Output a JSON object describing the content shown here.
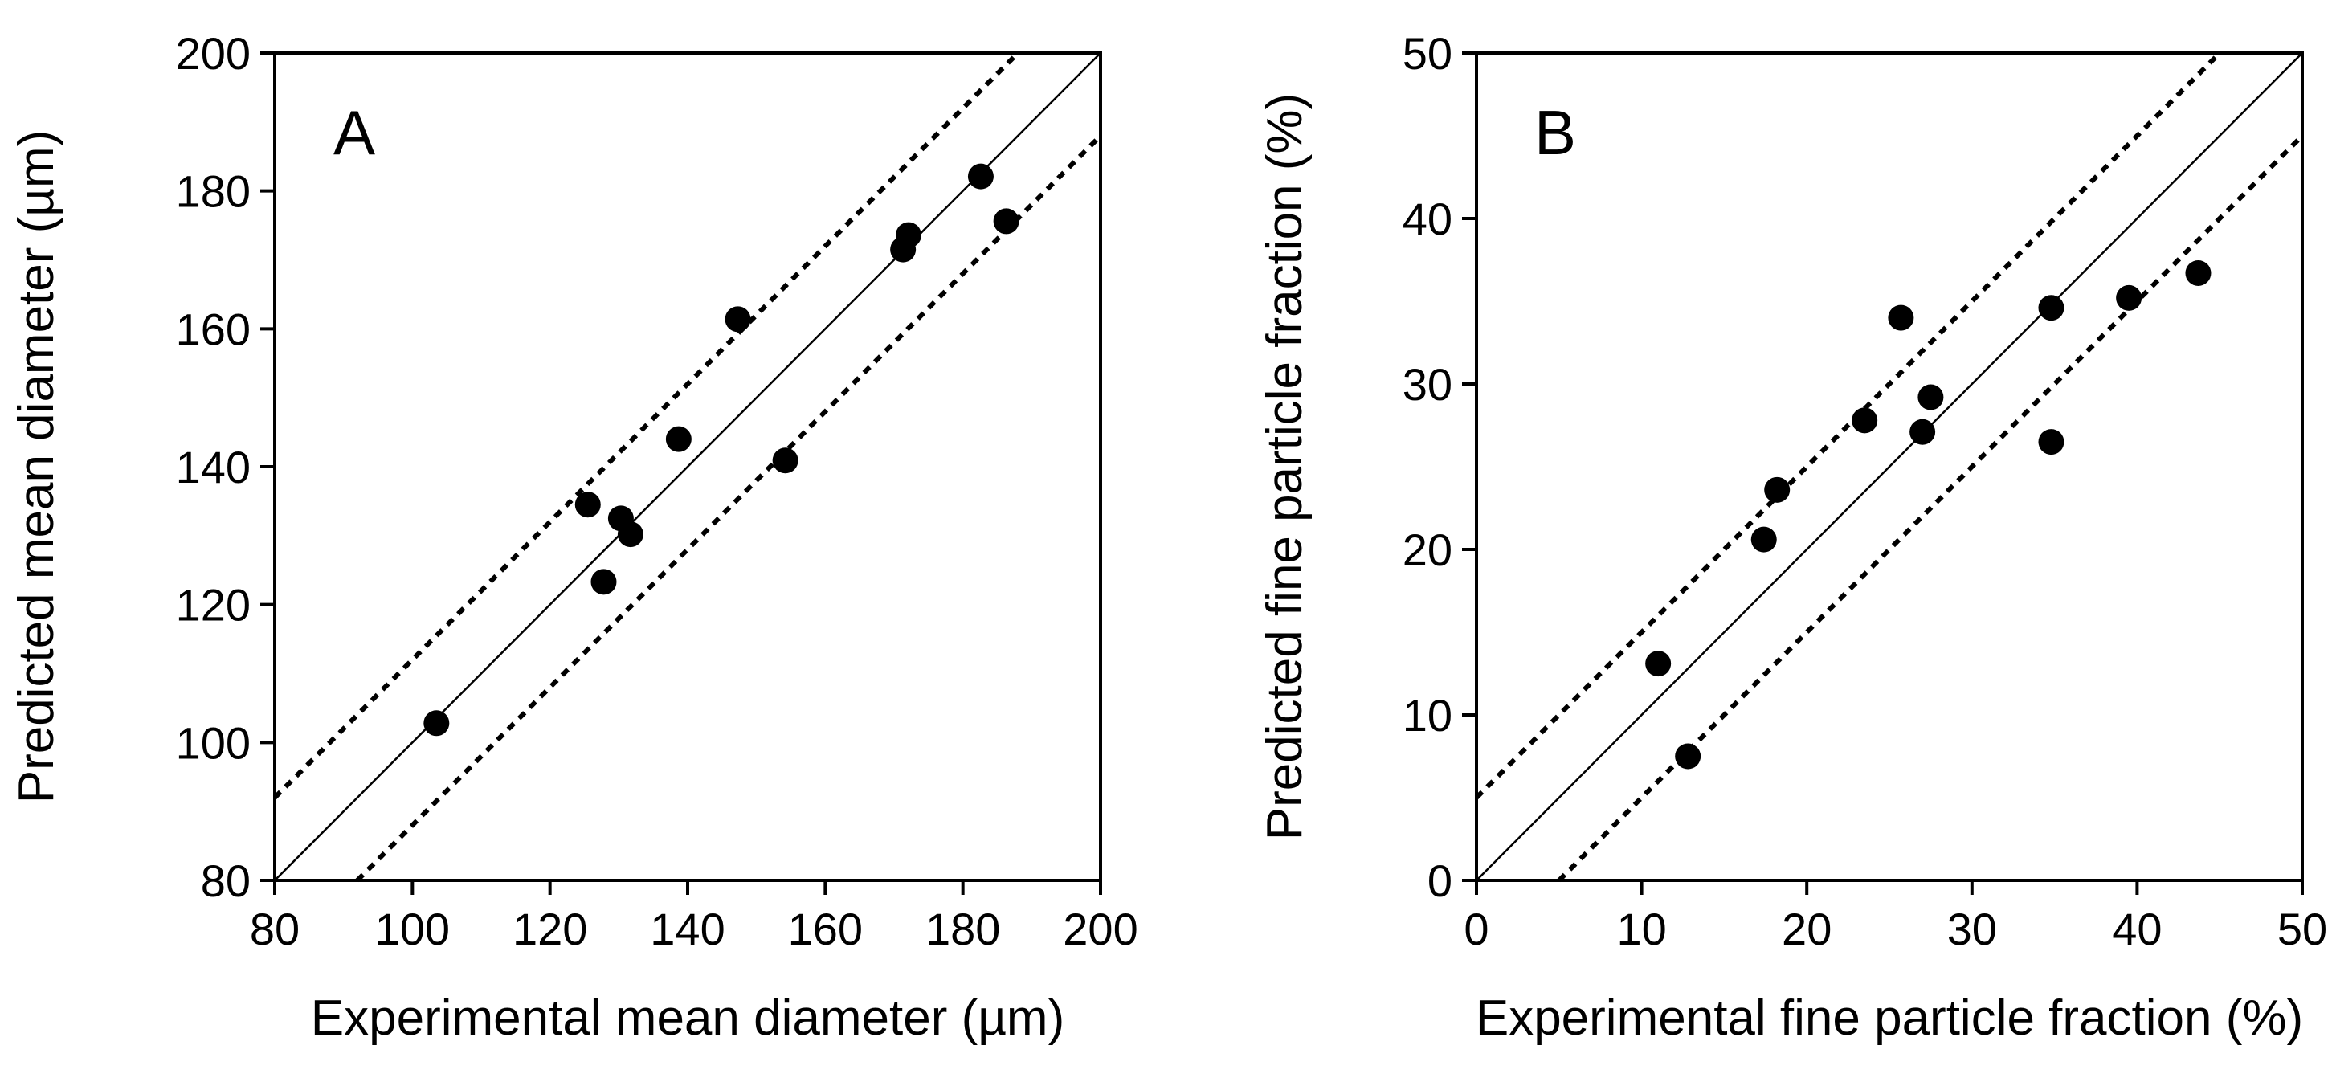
{
  "chart_data": [
    {
      "type": "scatter",
      "panel_label": "A",
      "xlabel": "Experimental mean diameter (µm)",
      "ylabel": "Predicted mean diameter (µm)",
      "xlim": [
        80,
        200
      ],
      "ylim": [
        80,
        200
      ],
      "xticks": [
        80,
        100,
        120,
        140,
        160,
        180,
        200
      ],
      "yticks": [
        80,
        100,
        120,
        140,
        160,
        180,
        200
      ],
      "reference_lines": [
        {
          "name": "identity",
          "style": "solid",
          "offset": 0
        },
        {
          "name": "upper-bound",
          "style": "dashed",
          "offset": 12
        },
        {
          "name": "lower-bound",
          "style": "dashed",
          "offset": -12
        }
      ],
      "points": [
        {
          "x": 103.5,
          "y": 102.8
        },
        {
          "x": 125.5,
          "y": 134.5
        },
        {
          "x": 127.8,
          "y": 123.3
        },
        {
          "x": 130.3,
          "y": 132.5
        },
        {
          "x": 131.7,
          "y": 130.2
        },
        {
          "x": 138.7,
          "y": 144.0
        },
        {
          "x": 147.3,
          "y": 161.4
        },
        {
          "x": 154.2,
          "y": 140.9
        },
        {
          "x": 171.3,
          "y": 171.5
        },
        {
          "x": 172.1,
          "y": 173.6
        },
        {
          "x": 182.6,
          "y": 182.1
        },
        {
          "x": 186.3,
          "y": 175.6
        }
      ]
    },
    {
      "type": "scatter",
      "panel_label": "B",
      "xlabel": "Experimental fine particle fraction (%)",
      "ylabel": "Predicted fine particle fraction (%)",
      "xlim": [
        0,
        50
      ],
      "ylim": [
        0,
        50
      ],
      "xticks": [
        0,
        10,
        20,
        30,
        40,
        50
      ],
      "yticks": [
        0,
        10,
        20,
        30,
        40,
        50
      ],
      "reference_lines": [
        {
          "name": "identity",
          "style": "solid",
          "offset": 0
        },
        {
          "name": "upper-bound",
          "style": "dashed",
          "offset": 5
        },
        {
          "name": "lower-bound",
          "style": "dashed",
          "offset": -5
        }
      ],
      "points": [
        {
          "x": 11.0,
          "y": 13.1
        },
        {
          "x": 12.8,
          "y": 7.5
        },
        {
          "x": 17.4,
          "y": 20.6
        },
        {
          "x": 18.2,
          "y": 23.6
        },
        {
          "x": 23.5,
          "y": 27.8
        },
        {
          "x": 25.7,
          "y": 34.0
        },
        {
          "x": 27.0,
          "y": 27.1
        },
        {
          "x": 27.5,
          "y": 29.2
        },
        {
          "x": 34.8,
          "y": 34.6
        },
        {
          "x": 34.8,
          "y": 26.5
        },
        {
          "x": 39.5,
          "y": 35.2
        },
        {
          "x": 43.7,
          "y": 36.7
        }
      ]
    }
  ]
}
